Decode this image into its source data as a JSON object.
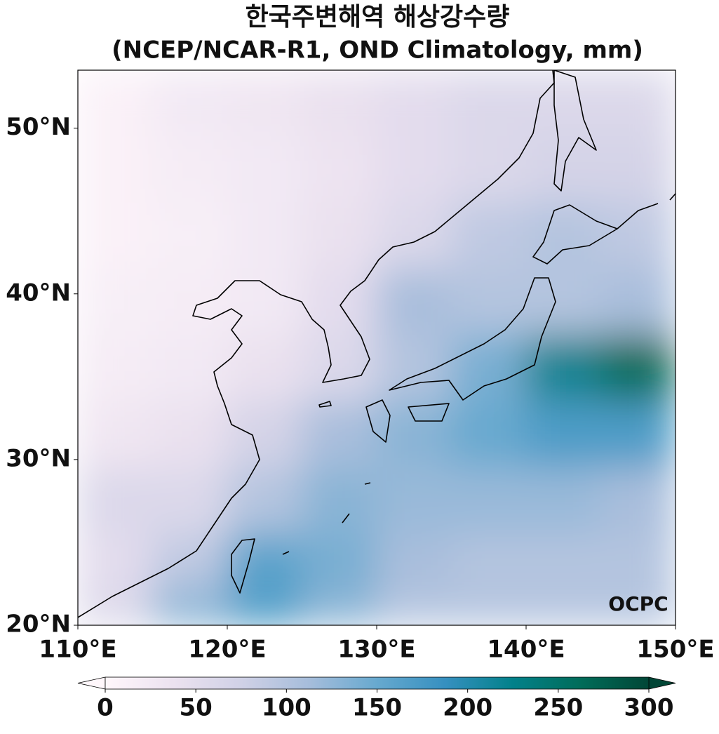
{
  "chart_data": {
    "type": "map",
    "title": "한국주변해역 해상강수량",
    "subtitle": "(NCEP/NCAR-R1, OND Climatology, mm)",
    "logo": "OCPC",
    "xlim": [
      110,
      150
    ],
    "ylim": [
      20,
      53.5
    ],
    "xticks": [
      {
        "value": 110,
        "label": "110°E"
      },
      {
        "value": 120,
        "label": "120°E"
      },
      {
        "value": 130,
        "label": "130°E"
      },
      {
        "value": 140,
        "label": "140°E"
      },
      {
        "value": 150,
        "label": "150°E"
      }
    ],
    "yticks": [
      {
        "value": 20,
        "label": "20°N"
      },
      {
        "value": 30,
        "label": "30°N"
      },
      {
        "value": 40,
        "label": "40°N"
      },
      {
        "value": 50,
        "label": "50°N"
      }
    ],
    "x": [
      112.5,
      117.5,
      122.5,
      127.5,
      132.5,
      137.5,
      142.5,
      147.5
    ],
    "y": [
      51.5,
      47.5,
      43.5,
      39.5,
      35.5,
      31.5,
      27.5,
      23.5,
      21
    ],
    "values": [
      [
        10,
        25,
        30,
        40,
        50,
        60,
        60,
        60
      ],
      [
        10,
        20,
        25,
        35,
        50,
        60,
        70,
        70
      ],
      [
        10,
        15,
        25,
        40,
        60,
        90,
        100,
        90
      ],
      [
        15,
        20,
        25,
        50,
        110,
        100,
        100,
        110
      ],
      [
        20,
        25,
        40,
        60,
        100,
        140,
        220,
        260
      ],
      [
        30,
        40,
        70,
        110,
        130,
        150,
        170,
        170
      ],
      [
        60,
        60,
        100,
        130,
        120,
        120,
        120,
        110
      ],
      [
        50,
        90,
        160,
        140,
        110,
        100,
        100,
        100
      ],
      [
        60,
        130,
        170,
        130,
        100,
        100,
        100,
        100
      ]
    ],
    "clim": [
      0,
      300
    ],
    "cticks": [
      0,
      50,
      100,
      150,
      200,
      250,
      300
    ],
    "colormap": [
      "#fff7fb",
      "#ece2f0",
      "#d0d1e6",
      "#a6bddb",
      "#67a9cf",
      "#3690c0",
      "#02818a",
      "#016c59",
      "#014636"
    ]
  }
}
